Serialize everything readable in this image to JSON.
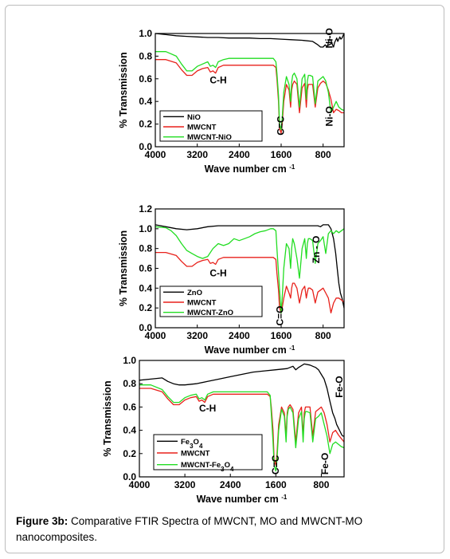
{
  "caption": {
    "label": "Figure 3b:",
    "text": " Comparative FTIR Spectra of MWCNT, MO and MWCNT-MO nanocomposites."
  },
  "colors": {
    "black": "#000000",
    "red": "#e8211b",
    "green": "#22dd22"
  },
  "chart_data": [
    {
      "type": "line",
      "xlabel": "Wave number cm",
      "xlabel_sup": "-1",
      "ylabel": "% Transmission",
      "xlim": [
        4000,
        400
      ],
      "ylim": [
        0.0,
        1.0
      ],
      "xticks": [
        "4000",
        "3200",
        "2400",
        "1600",
        "800"
      ],
      "yticks": [
        "0.0",
        "0.2",
        "0.4",
        "0.6",
        "0.8",
        "1.0"
      ],
      "legend_position": "bottom-left",
      "annotations": [
        {
          "text": "C-H",
          "x": 2800,
          "y": 0.56,
          "rotate": 0
        },
        {
          "text": "C=C",
          "x": 1550,
          "y": 0.1,
          "rotate": -90
        },
        {
          "text": "Ni-O",
          "x": 620,
          "y": 0.87,
          "rotate": -90
        },
        {
          "text": "Ni-O",
          "x": 620,
          "y": 0.18,
          "rotate": -90
        }
      ],
      "series": [
        {
          "name": "NiO",
          "color": "#000000",
          "x": [
            4000,
            3800,
            3600,
            3400,
            3200,
            3000,
            2800,
            2600,
            2400,
            2200,
            2000,
            1800,
            1600,
            1400,
            1200,
            1000,
            900,
            850,
            800,
            760,
            720,
            700,
            680,
            650,
            620,
            600,
            580,
            560,
            540,
            520,
            500,
            480,
            460,
            440,
            420,
            400
          ],
          "y": [
            1.0,
            0.99,
            0.98,
            0.975,
            0.97,
            0.965,
            0.965,
            0.96,
            0.96,
            0.96,
            0.955,
            0.955,
            0.95,
            0.945,
            0.94,
            0.93,
            0.9,
            0.88,
            0.88,
            0.9,
            0.88,
            0.92,
            0.95,
            0.94,
            0.9,
            0.88,
            0.92,
            0.94,
            0.96,
            0.93,
            0.95,
            0.97,
            0.95,
            0.96,
            0.98,
            1.0
          ]
        },
        {
          "name": "MWCNT",
          "color": "#e8211b",
          "x": [
            4000,
            3800,
            3600,
            3500,
            3400,
            3300,
            3200,
            3100,
            3000,
            2950,
            2900,
            2850,
            2800,
            2700,
            2600,
            2400,
            2200,
            2000,
            1800,
            1750,
            1700,
            1680,
            1650,
            1630,
            1600,
            1580,
            1550,
            1500,
            1450,
            1420,
            1400,
            1380,
            1350,
            1300,
            1250,
            1200,
            1150,
            1120,
            1100,
            1080,
            1050,
            1000,
            950,
            900,
            850,
            800,
            750,
            700,
            650,
            600,
            550,
            500,
            450,
            400
          ],
          "y": [
            0.77,
            0.77,
            0.74,
            0.68,
            0.63,
            0.63,
            0.67,
            0.69,
            0.7,
            0.66,
            0.67,
            0.65,
            0.7,
            0.72,
            0.72,
            0.72,
            0.72,
            0.72,
            0.72,
            0.72,
            0.7,
            0.6,
            0.4,
            0.16,
            0.12,
            0.2,
            0.4,
            0.55,
            0.5,
            0.35,
            0.5,
            0.55,
            0.58,
            0.55,
            0.3,
            0.52,
            0.56,
            0.35,
            0.5,
            0.55,
            0.55,
            0.55,
            0.35,
            0.52,
            0.56,
            0.58,
            0.56,
            0.5,
            0.42,
            0.3,
            0.33,
            0.32,
            0.3,
            0.3
          ]
        },
        {
          "name": "MWCNT-NiO",
          "color": "#22dd22",
          "x": [
            4000,
            3800,
            3600,
            3500,
            3400,
            3300,
            3200,
            3100,
            3000,
            2950,
            2900,
            2850,
            2800,
            2700,
            2600,
            2400,
            2200,
            2000,
            1800,
            1750,
            1700,
            1680,
            1650,
            1630,
            1600,
            1580,
            1550,
            1500,
            1450,
            1420,
            1400,
            1380,
            1350,
            1300,
            1250,
            1200,
            1150,
            1120,
            1100,
            1080,
            1050,
            1000,
            950,
            900,
            850,
            800,
            750,
            700,
            650,
            600,
            550,
            500,
            450,
            400
          ],
          "y": [
            0.84,
            0.84,
            0.8,
            0.73,
            0.67,
            0.67,
            0.71,
            0.73,
            0.75,
            0.71,
            0.72,
            0.7,
            0.75,
            0.77,
            0.78,
            0.78,
            0.78,
            0.78,
            0.78,
            0.78,
            0.75,
            0.65,
            0.45,
            0.2,
            0.15,
            0.25,
            0.48,
            0.62,
            0.55,
            0.4,
            0.57,
            0.63,
            0.65,
            0.6,
            0.35,
            0.6,
            0.64,
            0.42,
            0.58,
            0.63,
            0.63,
            0.62,
            0.38,
            0.58,
            0.6,
            0.62,
            0.58,
            0.48,
            0.3,
            0.35,
            0.4,
            0.35,
            0.33,
            0.32
          ]
        }
      ]
    },
    {
      "type": "line",
      "xlabel": "Wave number cm",
      "xlabel_sup": "-1",
      "ylabel": "% Transmission",
      "xlim": [
        4000,
        400
      ],
      "ylim": [
        0.0,
        1.2
      ],
      "xticks": [
        "4000",
        "3200",
        "2400",
        "1600",
        "800"
      ],
      "yticks": [
        "0.0",
        "0.2",
        "0.4",
        "0.6",
        "0.8",
        "1.0",
        "1.2"
      ],
      "legend_position": "bottom-left",
      "annotations": [
        {
          "text": "C-H",
          "x": 2800,
          "y": 0.52,
          "rotate": 0
        },
        {
          "text": "C=O",
          "x": 1560,
          "y": 0.02,
          "rotate": -90
        },
        {
          "text": "Zn - O",
          "x": 870,
          "y": 0.65,
          "rotate": -90
        }
      ],
      "series": [
        {
          "name": "ZnO",
          "color": "#000000",
          "x": [
            4000,
            3800,
            3600,
            3400,
            3200,
            3000,
            2800,
            2600,
            2400,
            2200,
            2000,
            1800,
            1600,
            1400,
            1200,
            1000,
            900,
            850,
            800,
            700,
            650,
            600,
            560,
            530,
            500,
            470,
            440,
            420,
            400
          ],
          "y": [
            1.04,
            1.02,
            1.0,
            0.99,
            1.0,
            1.02,
            1.03,
            1.03,
            1.03,
            1.03,
            1.03,
            1.03,
            1.03,
            1.03,
            1.03,
            1.03,
            1.03,
            1.02,
            1.04,
            1.04,
            1.0,
            0.9,
            0.75,
            0.6,
            0.45,
            0.35,
            0.3,
            0.25,
            0.2
          ]
        },
        {
          "name": "MWCNT",
          "color": "#e8211b",
          "x": [
            4000,
            3800,
            3600,
            3500,
            3400,
            3300,
            3200,
            3100,
            3000,
            2950,
            2900,
            2850,
            2800,
            2700,
            2600,
            2400,
            2200,
            2000,
            1800,
            1750,
            1700,
            1680,
            1650,
            1630,
            1600,
            1580,
            1550,
            1500,
            1450,
            1420,
            1400,
            1380,
            1350,
            1300,
            1250,
            1200,
            1150,
            1120,
            1100,
            1080,
            1050,
            1000,
            950,
            900,
            850,
            800,
            750,
            700,
            650,
            600,
            550,
            500,
            450,
            400
          ],
          "y": [
            0.76,
            0.76,
            0.73,
            0.67,
            0.62,
            0.62,
            0.66,
            0.68,
            0.69,
            0.65,
            0.66,
            0.64,
            0.69,
            0.71,
            0.71,
            0.71,
            0.71,
            0.71,
            0.71,
            0.71,
            0.69,
            0.55,
            0.38,
            0.2,
            0.15,
            0.2,
            0.3,
            0.42,
            0.35,
            0.3,
            0.4,
            0.45,
            0.45,
            0.4,
            0.25,
            0.38,
            0.42,
            0.3,
            0.36,
            0.4,
            0.4,
            0.38,
            0.25,
            0.36,
            0.38,
            0.4,
            0.35,
            0.3,
            0.15,
            0.25,
            0.3,
            0.3,
            0.28,
            0.26
          ]
        },
        {
          "name": "MWCNT-ZnO",
          "color": "#22dd22",
          "x": [
            4000,
            3800,
            3700,
            3600,
            3500,
            3400,
            3300,
            3200,
            3100,
            3000,
            2900,
            2800,
            2700,
            2600,
            2500,
            2400,
            2300,
            2200,
            2100,
            2000,
            1900,
            1800,
            1750,
            1700,
            1680,
            1650,
            1620,
            1600,
            1580,
            1550,
            1500,
            1450,
            1420,
            1400,
            1380,
            1350,
            1300,
            1250,
            1200,
            1150,
            1120,
            1100,
            1080,
            1050,
            1000,
            950,
            900,
            850,
            800,
            750,
            700,
            650,
            600,
            550,
            500,
            450,
            400
          ],
          "y": [
            1.02,
            1.01,
            0.98,
            0.93,
            0.85,
            0.78,
            0.75,
            0.72,
            0.7,
            0.72,
            0.8,
            0.85,
            0.83,
            0.85,
            0.9,
            0.88,
            0.9,
            0.92,
            0.95,
            0.97,
            0.98,
            1.0,
            1.0,
            0.98,
            0.8,
            0.55,
            0.3,
            0.15,
            0.3,
            0.6,
            0.85,
            0.8,
            0.6,
            0.8,
            0.9,
            0.85,
            0.7,
            0.5,
            0.8,
            0.9,
            0.7,
            0.85,
            0.9,
            0.9,
            0.88,
            0.65,
            0.85,
            0.88,
            0.92,
            0.75,
            0.95,
            0.98,
            0.95,
            0.98,
            0.96,
            0.98,
            1.0
          ]
        }
      ]
    },
    {
      "type": "line",
      "xlabel": "Wave number cm",
      "xlabel_sup": "-1",
      "ylabel": "% Transmission",
      "xlim": [
        4000,
        400
      ],
      "ylim": [
        0.0,
        1.0
      ],
      "xticks": [
        "4000",
        "3200",
        "2400",
        "1600",
        "800"
      ],
      "yticks": [
        "0.0",
        "0.2",
        "0.4",
        "0.6",
        "0.8",
        "1.0"
      ],
      "legend_position": "bottom-left",
      "annotations": [
        {
          "text": "C-H",
          "x": 2800,
          "y": 0.56,
          "rotate": 0
        },
        {
          "text": "C=C",
          "x": 1550,
          "y": 0.02,
          "rotate": -90
        },
        {
          "text": "Fe-O",
          "x": 680,
          "y": 0.02,
          "rotate": -90
        },
        {
          "text": "Fe-O",
          "x": 430,
          "y": 0.68,
          "rotate": -90
        }
      ],
      "series": [
        {
          "name": "Fe3O4",
          "color": "#000000",
          "x": [
            4000,
            3800,
            3600,
            3500,
            3400,
            3300,
            3200,
            3000,
            2800,
            2600,
            2400,
            2200,
            2000,
            1800,
            1600,
            1400,
            1300,
            1250,
            1200,
            1100,
            1000,
            950,
            900,
            850,
            800,
            750,
            700,
            650,
            600,
            560,
            530,
            500,
            480,
            460,
            440,
            420,
            400
          ],
          "y": [
            0.83,
            0.84,
            0.85,
            0.82,
            0.8,
            0.79,
            0.79,
            0.8,
            0.82,
            0.84,
            0.86,
            0.88,
            0.9,
            0.91,
            0.92,
            0.93,
            0.95,
            0.92,
            0.94,
            0.97,
            0.96,
            0.95,
            0.94,
            0.92,
            0.88,
            0.84,
            0.76,
            0.65,
            0.55,
            0.5,
            0.45,
            0.42,
            0.4,
            0.38,
            0.36,
            0.35,
            0.35
          ]
        },
        {
          "name": "MWCNT",
          "color": "#e8211b",
          "x": [
            4000,
            3800,
            3600,
            3500,
            3400,
            3300,
            3200,
            3100,
            3000,
            2950,
            2900,
            2850,
            2800,
            2700,
            2600,
            2400,
            2200,
            2000,
            1800,
            1750,
            1700,
            1680,
            1650,
            1630,
            1600,
            1580,
            1550,
            1500,
            1450,
            1420,
            1400,
            1380,
            1350,
            1300,
            1250,
            1200,
            1150,
            1120,
            1100,
            1080,
            1050,
            1000,
            950,
            900,
            850,
            800,
            750,
            700,
            650,
            600,
            550,
            500,
            450,
            400
          ],
          "y": [
            0.76,
            0.76,
            0.73,
            0.67,
            0.62,
            0.62,
            0.66,
            0.68,
            0.69,
            0.65,
            0.66,
            0.64,
            0.69,
            0.71,
            0.71,
            0.71,
            0.71,
            0.71,
            0.71,
            0.71,
            0.69,
            0.6,
            0.4,
            0.15,
            0.1,
            0.2,
            0.45,
            0.6,
            0.55,
            0.35,
            0.55,
            0.6,
            0.62,
            0.58,
            0.3,
            0.55,
            0.6,
            0.35,
            0.55,
            0.6,
            0.6,
            0.6,
            0.35,
            0.56,
            0.58,
            0.6,
            0.55,
            0.45,
            0.3,
            0.38,
            0.4,
            0.36,
            0.33,
            0.3
          ]
        },
        {
          "name": "MWCNT-Fe3O4",
          "color": "#22dd22",
          "x": [
            4000,
            3800,
            3600,
            3500,
            3400,
            3300,
            3200,
            3100,
            3000,
            2950,
            2900,
            2850,
            2800,
            2700,
            2600,
            2400,
            2200,
            2000,
            1800,
            1750,
            1700,
            1680,
            1650,
            1630,
            1600,
            1580,
            1550,
            1500,
            1450,
            1420,
            1400,
            1380,
            1350,
            1300,
            1250,
            1200,
            1150,
            1120,
            1100,
            1080,
            1050,
            1000,
            950,
            900,
            850,
            800,
            750,
            700,
            650,
            600,
            550,
            500,
            450,
            400
          ],
          "y": [
            0.79,
            0.79,
            0.75,
            0.69,
            0.64,
            0.64,
            0.68,
            0.7,
            0.71,
            0.67,
            0.68,
            0.66,
            0.71,
            0.73,
            0.73,
            0.73,
            0.73,
            0.73,
            0.73,
            0.73,
            0.7,
            0.55,
            0.3,
            0.1,
            0.05,
            0.15,
            0.4,
            0.58,
            0.52,
            0.3,
            0.52,
            0.58,
            0.6,
            0.55,
            0.25,
            0.5,
            0.56,
            0.3,
            0.5,
            0.56,
            0.56,
            0.55,
            0.3,
            0.5,
            0.52,
            0.55,
            0.45,
            0.35,
            0.2,
            0.28,
            0.3,
            0.28,
            0.26,
            0.25
          ]
        }
      ]
    }
  ]
}
